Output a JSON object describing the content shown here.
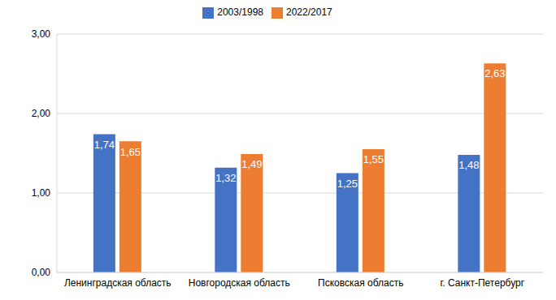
{
  "chart_data": {
    "type": "bar",
    "categories": [
      "Ленинградская область",
      "Новгородская область",
      "Псковская область",
      "г. Санкт-Петербург"
    ],
    "series": [
      {
        "name": "2003/1998",
        "color": "#4472c4",
        "values": [
          1.74,
          1.32,
          1.25,
          1.48
        ],
        "value_labels": [
          "1,74",
          "1,32",
          "1,25",
          "1,48"
        ]
      },
      {
        "name": "2022/2017",
        "color": "#ed7d31",
        "values": [
          1.65,
          1.49,
          1.55,
          2.63
        ],
        "value_labels": [
          "1,65",
          "1,49",
          "1,55",
          "2,63"
        ]
      }
    ],
    "ylim": [
      0,
      3
    ],
    "yticks": [
      {
        "value": 0,
        "label": "0,00"
      },
      {
        "value": 1,
        "label": "1,00"
      },
      {
        "value": 2,
        "label": "2,00"
      },
      {
        "value": 3,
        "label": "3,00"
      }
    ],
    "grid": true,
    "legend": "top",
    "data_labels": true
  }
}
